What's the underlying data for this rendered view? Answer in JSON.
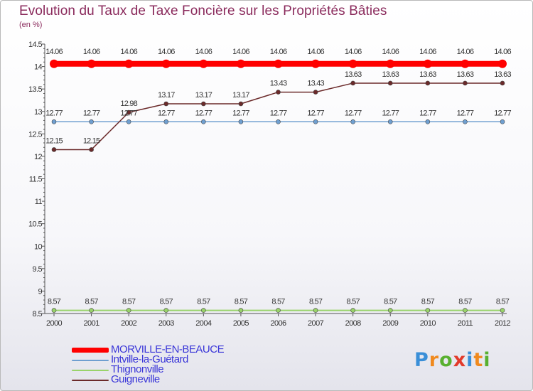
{
  "header": {
    "title": "Evolution du Taux de Taxe Foncière sur les Propriétés Bâties",
    "unit": "(en %)"
  },
  "logo": {
    "letters": [
      "P",
      "r",
      "o",
      "x",
      "i",
      "t",
      "i"
    ],
    "colors": [
      "#3a8fd8",
      "#f08a1e",
      "#58b02f",
      "#e23a2a",
      "#3a8fd8",
      "#f08a1e",
      "#58b02f"
    ]
  },
  "chart_data": {
    "type": "line",
    "title": "Evolution du Taux de Taxe Foncière sur les Propriétés Bâties",
    "ylabel": "(en %)",
    "xlabel": "",
    "x": [
      "2000",
      "2001",
      "2002",
      "2003",
      "2004",
      "2005",
      "2006",
      "2007",
      "2008",
      "2009",
      "2010",
      "2011",
      "2012"
    ],
    "ylim": [
      8.5,
      14.5
    ],
    "yticks": [
      "8.5",
      "9",
      "9.5",
      "10",
      "10.5",
      "11",
      "11.5",
      "12",
      "12.5",
      "13",
      "13.5",
      "14",
      "14.5"
    ],
    "grid": false,
    "legend_position": "bottom-left",
    "series": [
      {
        "name": "MORVILLE-EN-BEAUCE",
        "color": "#ff0000",
        "values": [
          14.06,
          14.06,
          14.06,
          14.06,
          14.06,
          14.06,
          14.06,
          14.06,
          14.06,
          14.06,
          14.06,
          14.06,
          14.06
        ],
        "labels": [
          "14.06",
          "14.06",
          "14.06",
          "14.06",
          "14.06",
          "14.06",
          "14.06",
          "14.06",
          "14.06",
          "14.06",
          "14.06",
          "14.06",
          "14.06"
        ]
      },
      {
        "name": "Intville-la-Guétard",
        "color": "#6f9fd0",
        "values": [
          12.77,
          12.77,
          12.77,
          12.77,
          12.77,
          12.77,
          12.77,
          12.77,
          12.77,
          12.77,
          12.77,
          12.77,
          12.77
        ],
        "labels": [
          "12.77",
          "12.77",
          "12.77",
          "12.77",
          "12.77",
          "12.77",
          "12.77",
          "12.77",
          "12.77",
          "12.77",
          "12.77",
          "12.77",
          "12.77"
        ]
      },
      {
        "name": "Thignonville",
        "color": "#99d36a",
        "values": [
          8.57,
          8.57,
          8.57,
          8.57,
          8.57,
          8.57,
          8.57,
          8.57,
          8.57,
          8.57,
          8.57,
          8.57,
          8.57
        ],
        "labels": [
          "8.57",
          "8.57",
          "8.57",
          "8.57",
          "8.57",
          "8.57",
          "8.57",
          "8.57",
          "8.57",
          "8.57",
          "8.57",
          "8.57",
          "8.57"
        ]
      },
      {
        "name": "Guigneville",
        "color": "#6b2a2a",
        "values": [
          12.15,
          12.15,
          12.98,
          13.17,
          13.17,
          13.17,
          13.43,
          13.43,
          13.63,
          13.63,
          13.63,
          13.63,
          13.63
        ],
        "labels": [
          "12.15",
          "12.15",
          "12.98",
          "13.17",
          "13.17",
          "13.17",
          "13.43",
          "13.43",
          "13.63",
          "13.63",
          "13.63",
          "13.63",
          "13.63"
        ]
      }
    ]
  }
}
